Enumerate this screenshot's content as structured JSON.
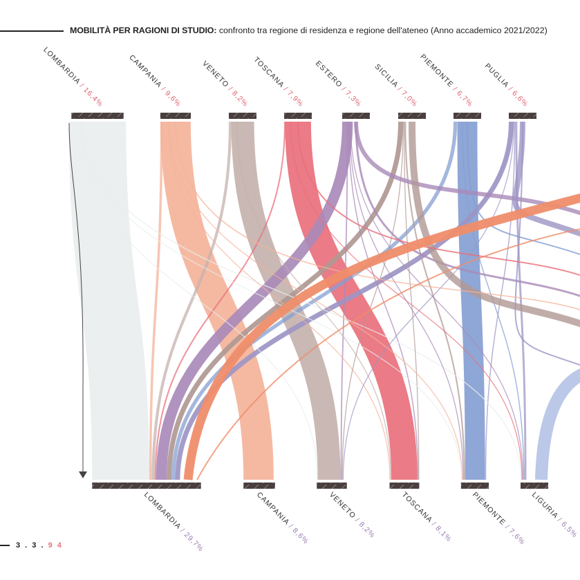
{
  "title": {
    "bold": "MOBILITÀ PER RAGIONI DI STUDIO:",
    "rest": "confronto tra regione di residenza e regione dell'ateneo (Anno accademico 2021/2022)"
  },
  "page_number": {
    "part1": "3 . 3 .",
    "part2": "9 4"
  },
  "colors": {
    "label_dark": "#333333",
    "percent_red": "#e0606c",
    "percent_purple": "#9a7ab0",
    "node_bar": "#4a3f3f"
  },
  "chart_data": {
    "type": "sankey",
    "title": "MOBILITÀ PER RAGIONI DI STUDIO: confronto tra regione di residenza e regione dell'ateneo (Anno accademico 2021/2022)",
    "source_axis": "regione di residenza",
    "target_axis": "regione dell'ateneo",
    "sources": [
      {
        "name": "LOMBARDIA",
        "pct_label": "/ 16,4%",
        "value": 16.4,
        "color": "#e9eeee"
      },
      {
        "name": "CAMPANIA",
        "pct_label": "/ 9,6%",
        "value": 9.6,
        "color": "#f4b39a"
      },
      {
        "name": "VENETO",
        "pct_label": "/ 8,2%",
        "value": 8.2,
        "color": "#c4b2ad"
      },
      {
        "name": "TOSCANA",
        "pct_label": "/ 7,9%",
        "value": 7.9,
        "color": "#e9707c"
      },
      {
        "name": "ESTERO",
        "pct_label": "/ 7,3%",
        "value": 7.3,
        "color": "#a98ab8"
      },
      {
        "name": "SICILIA",
        "pct_label": "/ 7,0%",
        "value": 7.0,
        "color": "#b09893"
      },
      {
        "name": "PIEMONTE",
        "pct_label": "/ 6,7%",
        "value": 6.7,
        "color": "#859fd2"
      },
      {
        "name": "PUGLIA",
        "pct_label": "/ 6,6%",
        "value": 6.6,
        "color": "#9d95c4"
      }
    ],
    "targets": [
      {
        "name": "LOMBARDIA",
        "pct_label": "/ 29,7%",
        "value": 29.7
      },
      {
        "name": "CAMPANIA",
        "pct_label": "/ 8,6%",
        "value": 8.6
      },
      {
        "name": "VENETO",
        "pct_label": "/ 8,2%",
        "value": 8.2
      },
      {
        "name": "TOSCANA",
        "pct_label": "/ 8,1%",
        "value": 8.1
      },
      {
        "name": "PIEMONTE",
        "pct_label": "/ 7,6%",
        "value": 7.6
      },
      {
        "name": "LIGURIA",
        "pct_label": "/ 6,5%",
        "value": 6.5
      }
    ],
    "flows": [
      {
        "from": "LOMBARDIA",
        "to": "LOMBARDIA",
        "value": 14.0
      },
      {
        "from": "CAMPANIA",
        "to": "CAMPANIA",
        "value": 7.4
      },
      {
        "from": "VENETO",
        "to": "VENETO",
        "value": 5.6
      },
      {
        "from": "TOSCANA",
        "to": "TOSCANA",
        "value": 6.4
      },
      {
        "from": "PIEMONTE",
        "to": "PIEMONTE",
        "value": 4.9
      },
      {
        "from": "ESTERO",
        "to": "LOMBARDIA",
        "value": 2.6
      },
      {
        "from": "PUGLIA",
        "to": "LOMBARDIA",
        "value": 1.2
      },
      {
        "from": "SICILIA",
        "to": "LOMBARDIA",
        "value": 1.2
      },
      {
        "from": "PIEMONTE",
        "to": "LOMBARDIA",
        "value": 0.9
      },
      {
        "from": "VENETO",
        "to": "LOMBARDIA",
        "value": 0.7
      },
      {
        "from": "CAMPANIA",
        "to": "LOMBARDIA",
        "value": 0.6
      },
      {
        "from": "TOSCANA",
        "to": "LOMBARDIA",
        "value": 0.35
      },
      {
        "from": "SICILIA",
        "to": "PIEMONTE",
        "value": 0.35
      },
      {
        "from": "PUGLIA",
        "to": "PIEMONTE",
        "value": 0.25
      },
      {
        "from": "PUGLIA",
        "to": "LIGURIA",
        "value": 0.5
      },
      {
        "from": "ESTERO",
        "to": "VENETO",
        "value": 0.3
      },
      {
        "from": "ESTERO",
        "to": "TOSCANA",
        "value": 0.25
      },
      {
        "from": "SICILIA",
        "to": "TOSCANA",
        "value": 0.2
      },
      {
        "from": "LOMBARDIA",
        "to": "PIEMONTE",
        "value": 0.2
      },
      {
        "from": "LOMBARDIA",
        "to": "LIGURIA",
        "value": 0.25
      },
      {
        "from": "LOMBARDIA",
        "to": "VENETO",
        "value": 0.15
      },
      {
        "from": "VENETO",
        "to": "TOSCANA",
        "value": 0.15
      },
      {
        "from": "CAMPANIA",
        "to": "TOSCANA",
        "value": 0.1
      },
      {
        "from": "TOSCANA",
        "to": "LIGURIA",
        "value": 0.15
      },
      {
        "from": "PIEMONTE",
        "to": "LIGURIA",
        "value": 0.25
      },
      {
        "from": "SICILIA",
        "to": "VENETO",
        "value": 0.1
      },
      {
        "from": "PUGLIA",
        "to": "VENETO",
        "value": 0.1
      },
      {
        "from": "CAMPANIA",
        "to": "PIEMONTE",
        "value": 0.1
      },
      {
        "from": "ESTERO",
        "to": "PIEMONTE",
        "value": 0.1
      },
      {
        "from": "ESTERO",
        "to": "LIGURIA",
        "value": 0.1
      }
    ]
  }
}
